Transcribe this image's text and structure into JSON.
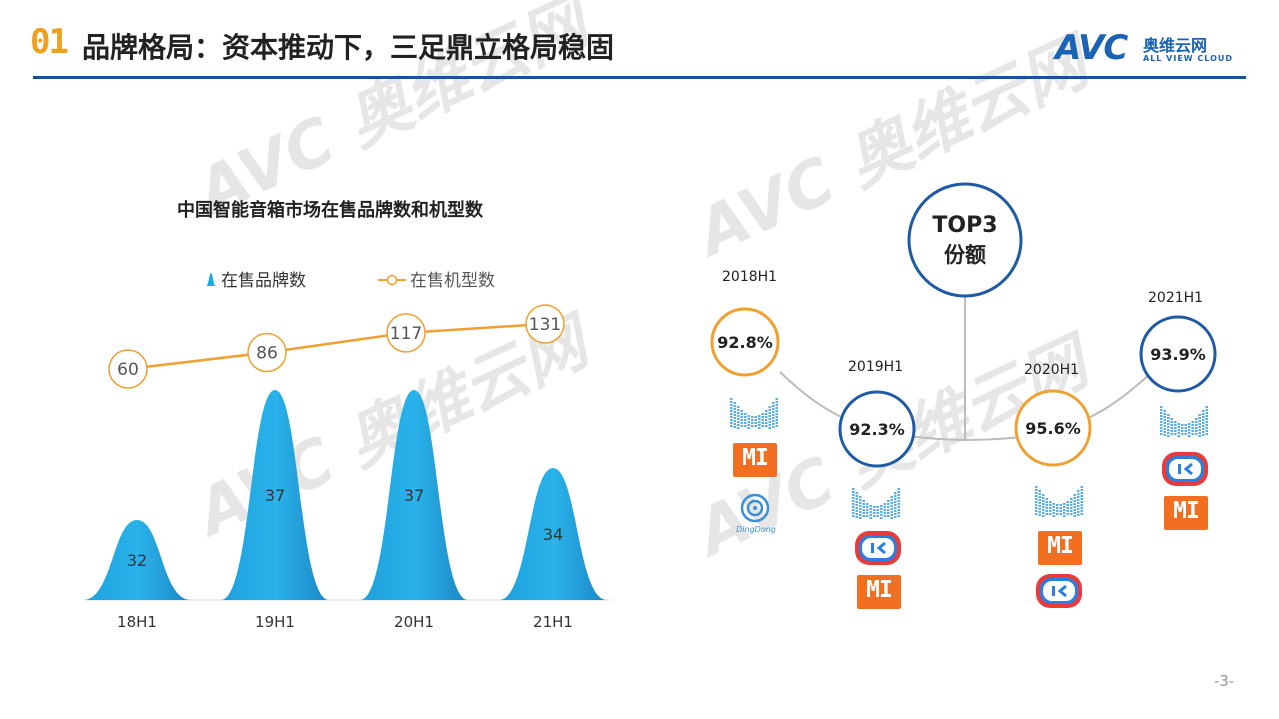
{
  "header": {
    "section_number": "01",
    "title": "品牌格局：资本推动下，三足鼎立格局稳固"
  },
  "logo": {
    "text": "AVC",
    "cn": "奥维云网",
    "en": "ALL VIEW CLOUD"
  },
  "watermark": {
    "text": "AVC 奥维云网",
    "sub": "ALL VIEW CLOUD"
  },
  "chart_data": {
    "type": "bar",
    "title": "中国智能音箱市场在售品牌数和机型数",
    "categories": [
      "18H1",
      "19H1",
      "20H1",
      "21H1"
    ],
    "series": [
      {
        "name": "在售品牌数",
        "kind": "bell-bar",
        "values": [
          32,
          37,
          37,
          34
        ],
        "color": "#1ea7e1"
      },
      {
        "name": "在售机型数",
        "kind": "line",
        "values": [
          60,
          86,
          117,
          131
        ],
        "color": "#f0a030"
      }
    ],
    "legend_position": "top",
    "grid": false
  },
  "top3": {
    "center_label_1": "TOP3",
    "center_label_2": "份额",
    "periods": [
      {
        "year": "2018H1",
        "share": "92.8%",
        "color": "#f0a030",
        "brands": [
          "baidu-xiaodu",
          "xiaomi",
          "dingdong"
        ]
      },
      {
        "year": "2019H1",
        "share": "92.3%",
        "color": "#1f5aa6",
        "brands": [
          "baidu-xiaodu",
          "tmall-genie",
          "xiaomi"
        ]
      },
      {
        "year": "2020H1",
        "share": "95.6%",
        "color": "#f0a030",
        "brands": [
          "baidu-xiaodu",
          "xiaomi",
          "tmall-genie"
        ]
      },
      {
        "year": "2021H1",
        "share": "93.9%",
        "color": "#1f5aa6",
        "brands": [
          "baidu-xiaodu",
          "tmall-genie",
          "xiaomi"
        ]
      }
    ],
    "brand_text": {
      "xiaomi": "MI",
      "dingdong": "DingDong"
    }
  },
  "footer": {
    "page": "-3-"
  }
}
